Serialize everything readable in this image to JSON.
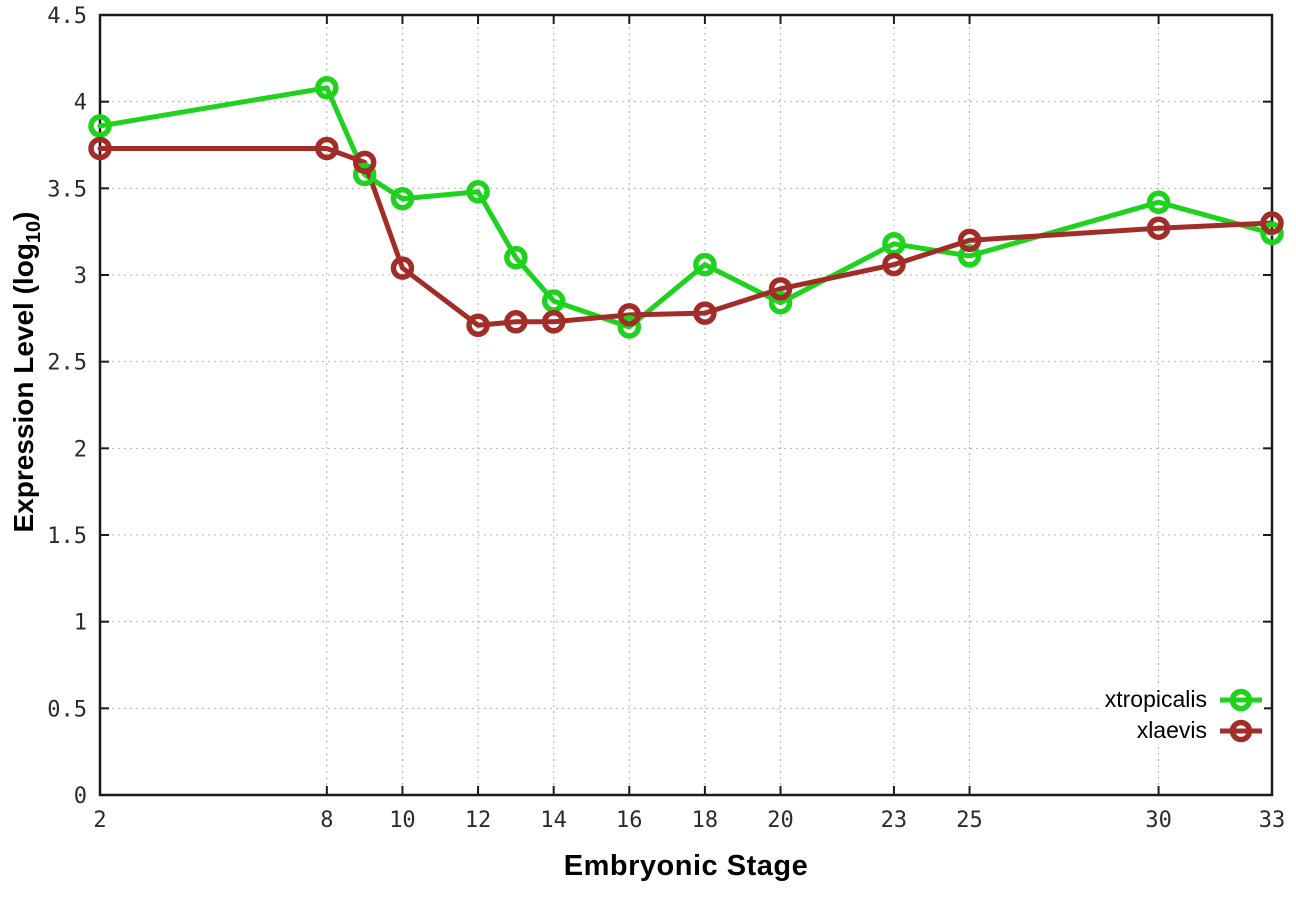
{
  "chart_data": {
    "type": "line",
    "title": "",
    "xlabel": "Embryonic Stage",
    "ylabel": {
      "prefix": "Expression Level (log",
      "subscript": "10",
      "suffix": ")"
    },
    "xlim": [
      2,
      33
    ],
    "ylim": [
      0,
      4.5
    ],
    "xticks": [
      2,
      8,
      10,
      12,
      14,
      16,
      18,
      20,
      23,
      25,
      30,
      33
    ],
    "yticks": [
      0,
      0.5,
      1,
      1.5,
      2,
      2.5,
      3,
      3.5,
      4,
      4.5
    ],
    "x": [
      2,
      8,
      9,
      10,
      12,
      13,
      14,
      16,
      18,
      20,
      23,
      25,
      30,
      33
    ],
    "series": [
      {
        "name": "xtropicalis",
        "color": "#1ed21e",
        "values": [
          3.86,
          4.08,
          3.58,
          3.44,
          3.48,
          3.1,
          2.85,
          2.7,
          3.06,
          2.84,
          3.18,
          3.11,
          3.42,
          3.24
        ]
      },
      {
        "name": "xlaevis",
        "color": "#a22d28",
        "values": [
          3.73,
          3.73,
          3.65,
          3.04,
          2.71,
          2.73,
          2.73,
          2.77,
          2.78,
          2.92,
          3.06,
          3.2,
          3.27,
          3.3
        ]
      }
    ],
    "grid": true,
    "legend_position": "bottom-right",
    "colors": {
      "grid": "#b5b5b5",
      "axis": "#1a1a1a",
      "tick_text": "#2b2b2b"
    }
  }
}
